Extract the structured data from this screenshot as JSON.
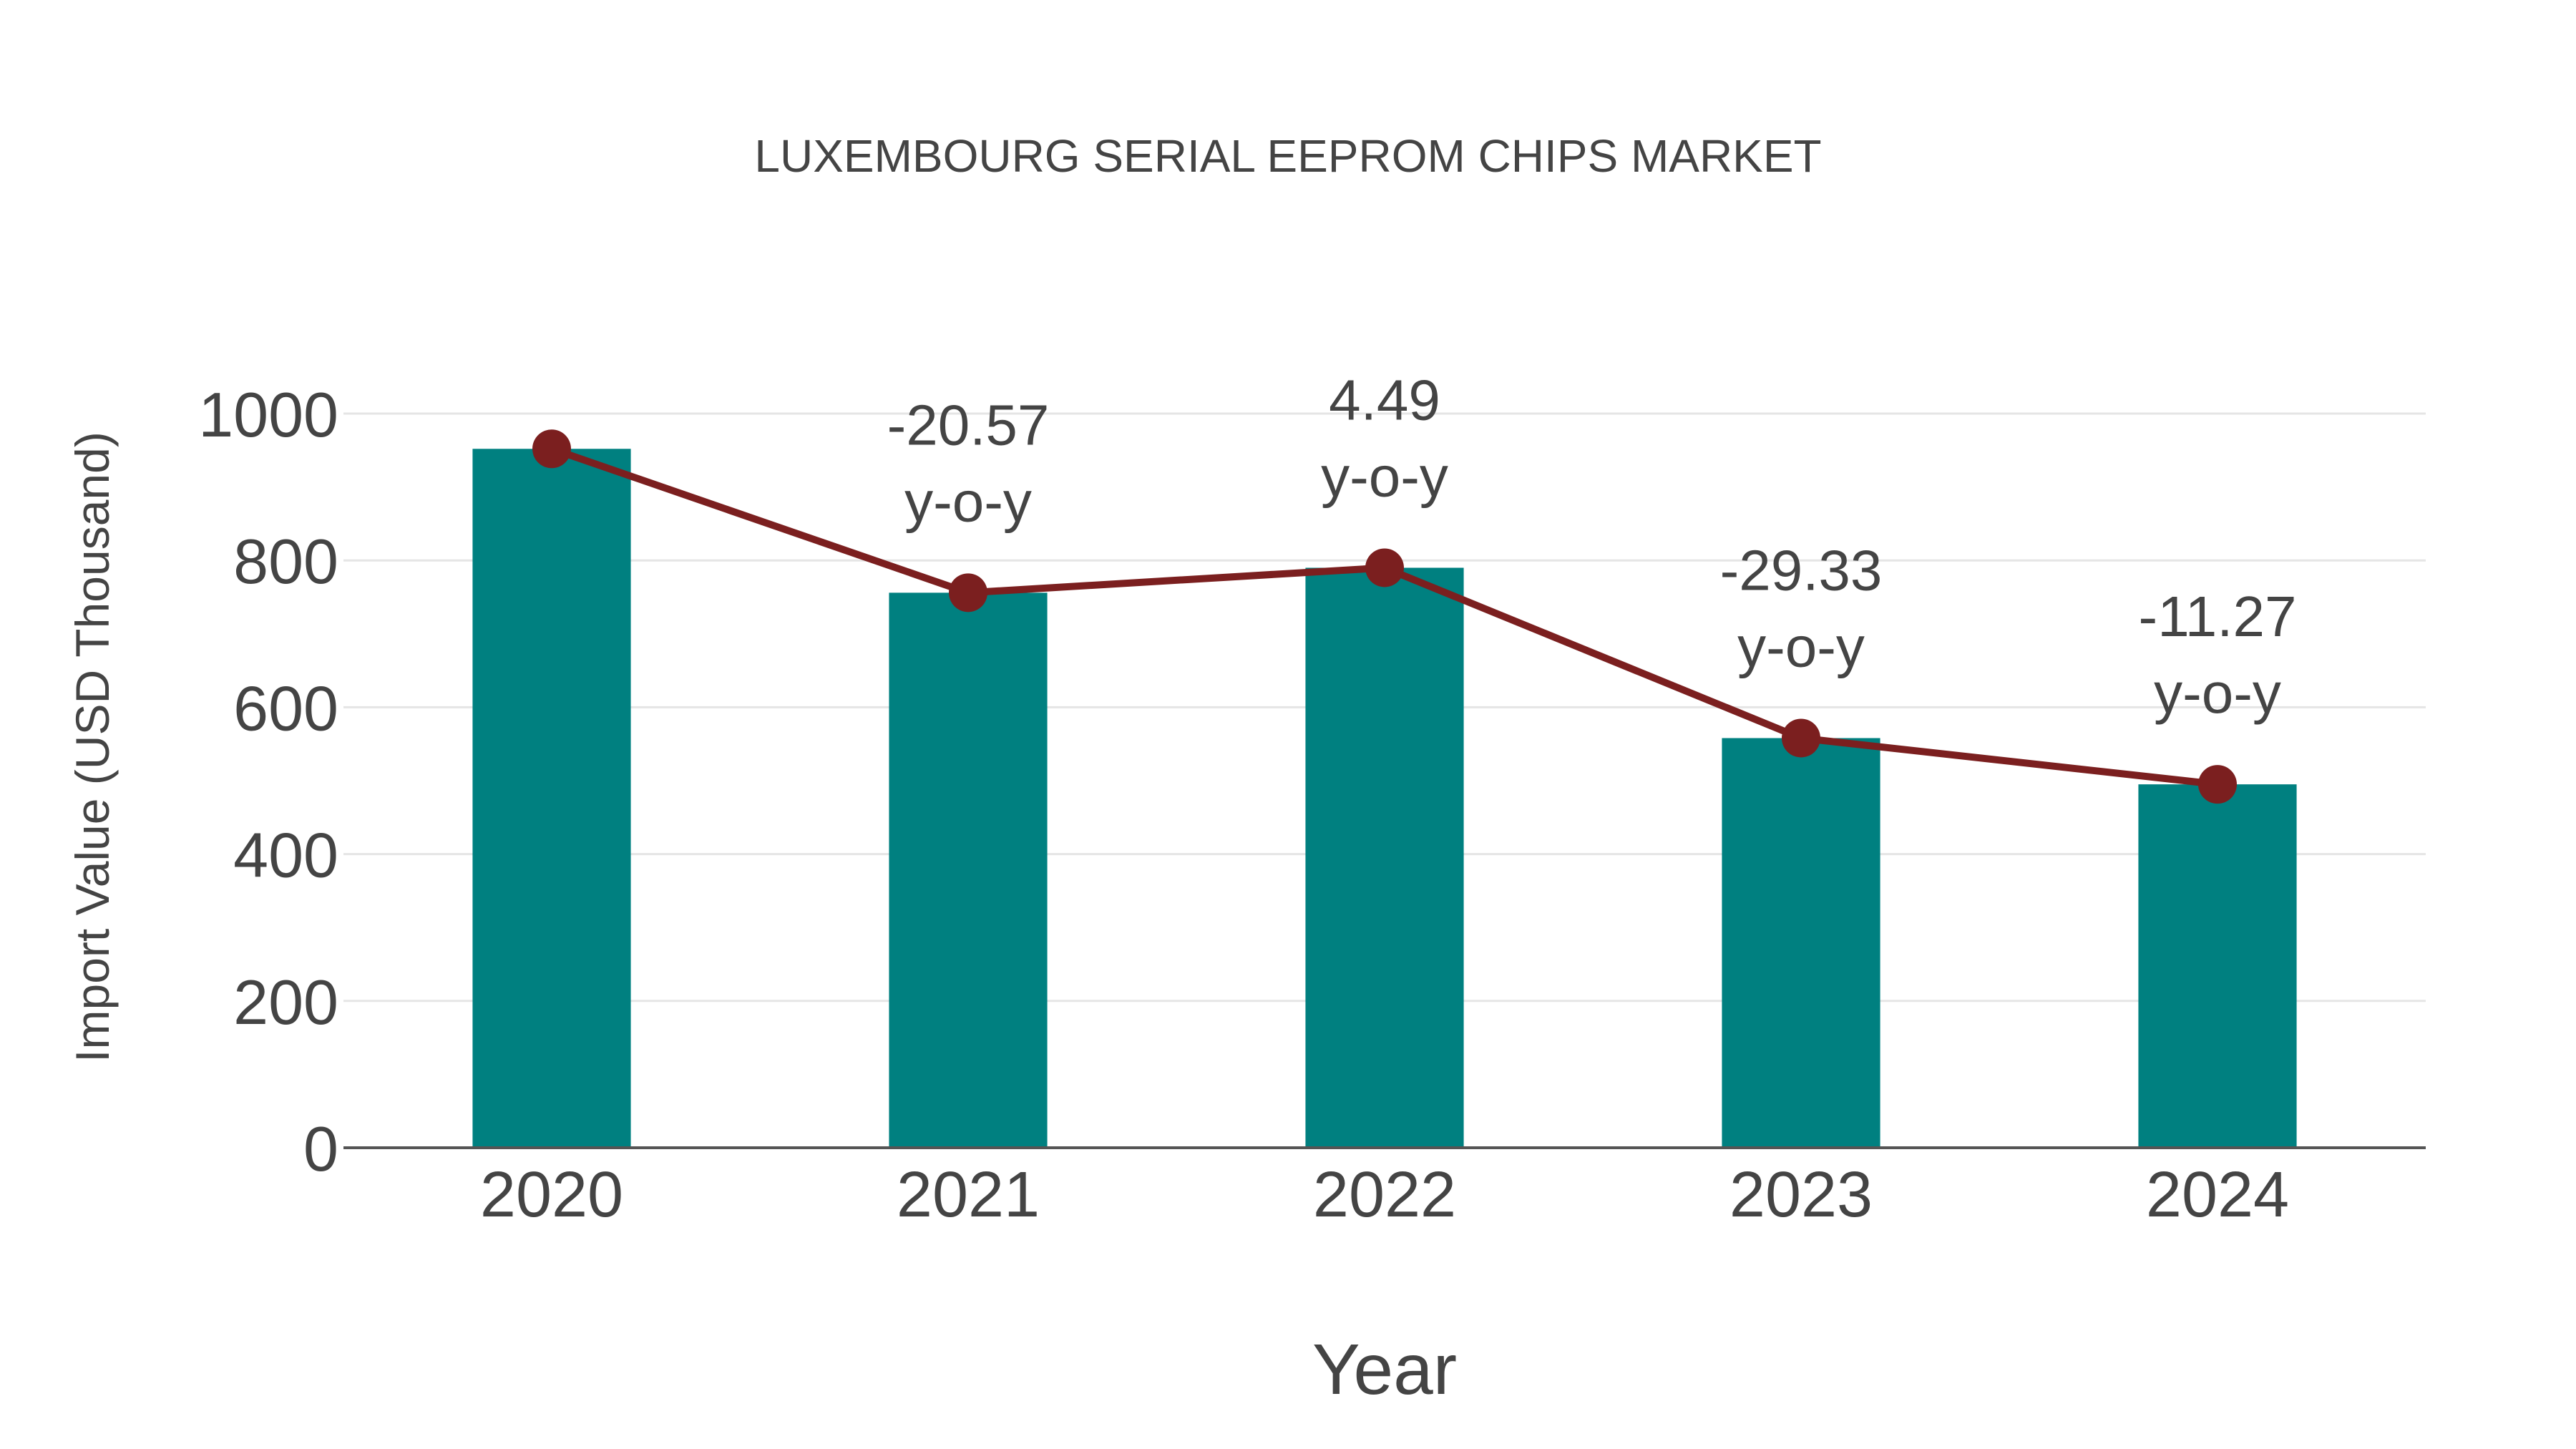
{
  "chart_data": {
    "type": "bar",
    "title": "LUXEMBOURG SERIAL EEPROM CHIPS MARKET",
    "xlabel": "Year",
    "ylabel": "Import Value (USD Thousand)",
    "categories": [
      "2020",
      "2021",
      "2022",
      "2023",
      "2024"
    ],
    "series": [
      {
        "name": "Import Value",
        "type": "bar",
        "color": "#008080",
        "values": [
          952,
          756,
          790,
          558,
          495
        ]
      },
      {
        "name": "Import Value trend",
        "type": "line",
        "color": "#7b1f1f",
        "values": [
          952,
          756,
          790,
          558,
          495
        ]
      }
    ],
    "annotations": [
      {
        "category": "2021",
        "value": "-20.57",
        "label": "y-o-y"
      },
      {
        "category": "2022",
        "value": "4.49",
        "label": "y-o-y"
      },
      {
        "category": "2023",
        "value": "-29.33",
        "label": "y-o-y"
      },
      {
        "category": "2024",
        "value": "-11.27",
        "label": "y-o-y"
      }
    ],
    "ylim": [
      0,
      1000
    ],
    "yticks": [
      "0",
      "200",
      "400",
      "600",
      "800",
      "1000"
    ],
    "grid": true,
    "legend": "none"
  },
  "colors": {
    "bar": "#008080",
    "line": "#7b1f1f",
    "text": "#444444",
    "grid": "#e5e5e5",
    "axis": "#555555"
  }
}
